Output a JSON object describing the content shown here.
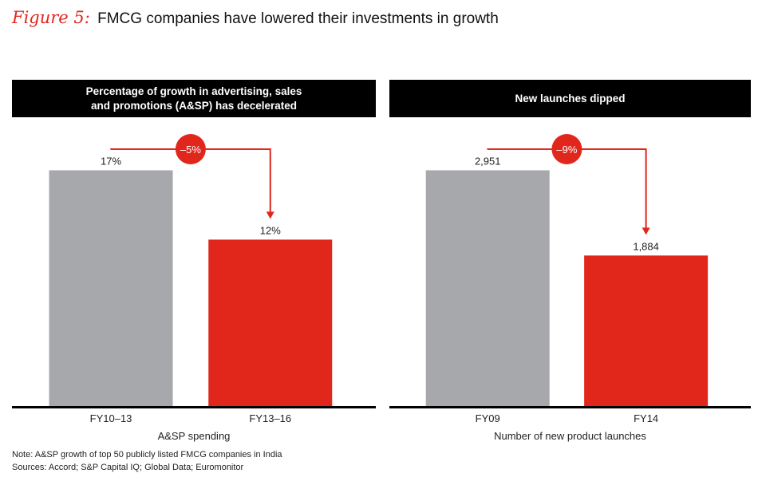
{
  "figure": {
    "label": "Figure 5:",
    "title": "FMCG companies have lowered their investments in growth"
  },
  "colors": {
    "accent": "#e1261c",
    "grey_bar": "#a7a8ab",
    "header_bg": "#000000",
    "axis": "#000000"
  },
  "chart_data": [
    {
      "type": "bar",
      "title": "Percentage of growth in advertising, sales and promotions (A&SP) has decelerated",
      "title_lines": [
        "Percentage of growth in advertising, sales",
        "and promotions (A&SP) has decelerated"
      ],
      "categories": [
        "FY10–13",
        "FY13–16"
      ],
      "values": [
        17,
        12
      ],
      "value_labels": [
        "17%",
        "12%"
      ],
      "bar_colors": [
        "#a7a8ab",
        "#e1261c"
      ],
      "xlabel": "A&SP spending",
      "ylabel": "",
      "ylim": [
        0,
        19.5
      ],
      "grid": false,
      "annotation": {
        "text": "–5%",
        "from": 0,
        "to": 1
      }
    },
    {
      "type": "bar",
      "title": "New launches dipped",
      "title_lines": [
        "New launches dipped"
      ],
      "categories": [
        "FY09",
        "FY14"
      ],
      "values": [
        2951,
        1884
      ],
      "value_labels": [
        "2,951",
        "1,884"
      ],
      "bar_colors": [
        "#a7a8ab",
        "#e1261c"
      ],
      "xlabel": "Number of new product launches",
      "ylabel": "",
      "ylim": [
        0,
        3385
      ],
      "grid": false,
      "annotation": {
        "text": "–9%",
        "from": 0,
        "to": 1
      }
    }
  ],
  "notes": {
    "note": "Note: A&SP growth of top 50 publicly listed FMCG companies in India",
    "sources": "Sources: Accord; S&P Capital IQ; Global Data; Euromonitor"
  }
}
